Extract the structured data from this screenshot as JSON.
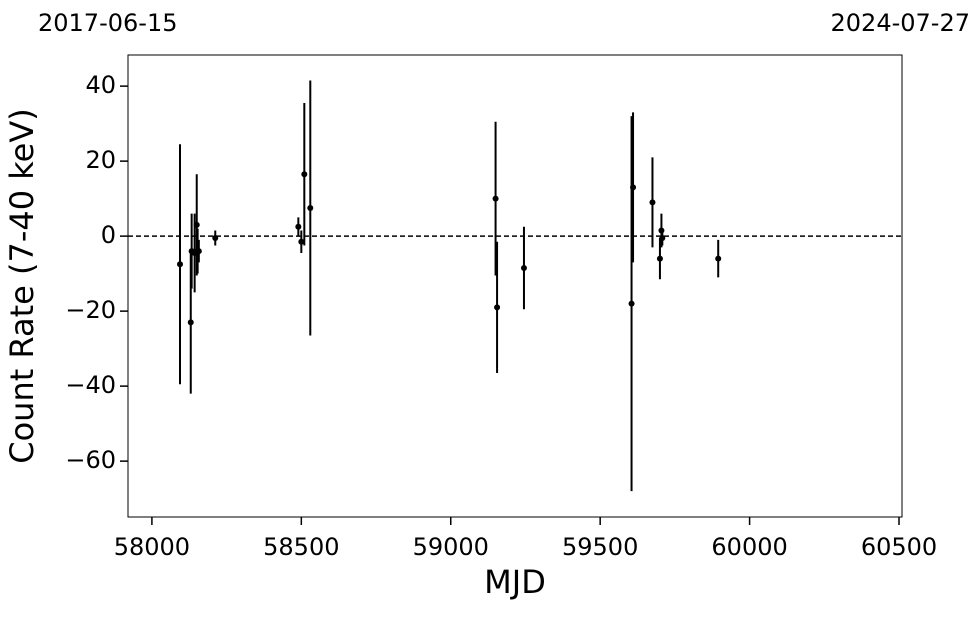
{
  "chart_data": {
    "type": "scatter",
    "top_left_label": "2017-06-15",
    "top_right_label": "2024-07-27",
    "xlabel": "MJD",
    "ylabel": "Count Rate (7-40 keV)",
    "xlim": [
      57920,
      60510
    ],
    "ylim": [
      -74.9,
      48.3
    ],
    "xticks": [
      58000,
      58500,
      59000,
      59500,
      60000,
      60500
    ],
    "yticks": [
      {
        "value": -60,
        "label": "−60"
      },
      {
        "value": -40,
        "label": "−40"
      },
      {
        "value": -20,
        "label": "−20"
      },
      0,
      20,
      40
    ],
    "hline": 0,
    "series": [
      {
        "color": "#000000",
        "x": [
          58094,
          58130,
          58133,
          58143,
          58150,
          58153,
          58157,
          58212,
          58490,
          58500,
          58510,
          58530,
          59150,
          59155,
          59245,
          59605,
          59610,
          59675,
          59700,
          59705,
          59708,
          59895
        ],
        "values": [
          -7.5,
          -23,
          -4,
          -4.5,
          3,
          -4,
          -4,
          -0.5,
          2.5,
          -1.5,
          16.5,
          7.5,
          10,
          -19,
          -8.5,
          -18,
          13,
          9,
          -6,
          1.5,
          -0.5,
          -6
        ],
        "errors": [
          32,
          19,
          10,
          10.5,
          13.5,
          6,
          3,
          2,
          2.5,
          3,
          19,
          34,
          20.5,
          17.5,
          11,
          50,
          20,
          12,
          5.5,
          4.5,
          2,
          5
        ]
      }
    ]
  }
}
